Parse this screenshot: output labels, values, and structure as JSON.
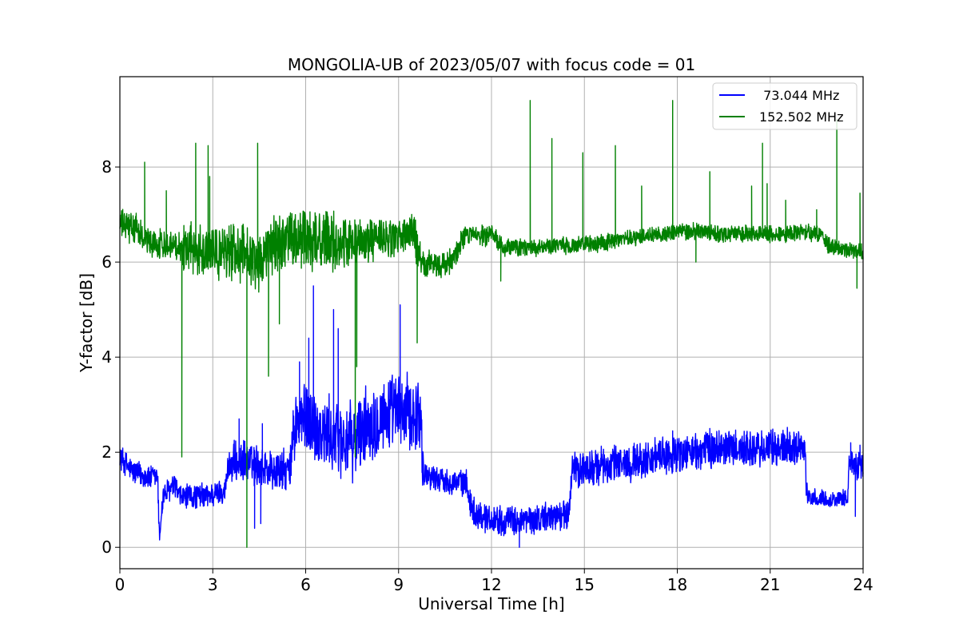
{
  "chart_data": {
    "type": "line",
    "title": "MONGOLIA-UB of 2023/05/07 with focus code = 01",
    "xlabel": "Universal Time [h]",
    "ylabel": "Y-factor [dB]",
    "xlim": [
      0,
      24
    ],
    "ylim": [
      -0.45,
      9.9
    ],
    "xticks": [
      0,
      3,
      6,
      9,
      12,
      15,
      18,
      21,
      24
    ],
    "yticks": [
      0,
      2,
      4,
      6,
      8
    ],
    "xtick_labels": [
      "0",
      "3",
      "6",
      "9",
      "12",
      "15",
      "18",
      "21",
      "24"
    ],
    "ytick_labels": [
      "0",
      "2",
      "4",
      "6",
      "8"
    ],
    "grid": true,
    "legend_position": "top-right",
    "series": [
      {
        "name": "73.044 MHz",
        "legend_label": " 73.044 MHz",
        "color": "#0000ff",
        "base": [
          [
            0,
            1.9
          ],
          [
            0.4,
            1.6
          ],
          [
            1.0,
            1.45
          ],
          [
            1.22,
            1.5
          ],
          [
            1.27,
            0.2
          ],
          [
            1.4,
            1.1
          ],
          [
            1.8,
            1.3
          ],
          [
            1.9,
            1.05
          ],
          [
            3.0,
            1.1
          ],
          [
            3.4,
            1.2
          ],
          [
            3.5,
            1.75
          ],
          [
            4.0,
            1.8
          ],
          [
            4.5,
            1.7
          ],
          [
            5.0,
            1.6
          ],
          [
            5.5,
            1.6
          ],
          [
            5.6,
            2.5
          ],
          [
            6.0,
            2.75
          ],
          [
            6.5,
            2.4
          ],
          [
            7.0,
            2.3
          ],
          [
            7.5,
            2.2
          ],
          [
            8.0,
            2.6
          ],
          [
            8.5,
            2.8
          ],
          [
            9.0,
            2.85
          ],
          [
            9.7,
            2.8
          ],
          [
            9.8,
            1.55
          ],
          [
            10.5,
            1.4
          ],
          [
            11.2,
            1.35
          ],
          [
            11.3,
            0.95
          ],
          [
            11.5,
            0.7
          ],
          [
            12.0,
            0.6
          ],
          [
            12.5,
            0.55
          ],
          [
            13.0,
            0.55
          ],
          [
            13.5,
            0.6
          ],
          [
            14.0,
            0.65
          ],
          [
            14.5,
            0.7
          ],
          [
            14.6,
            1.6
          ],
          [
            15.5,
            1.7
          ],
          [
            16.5,
            1.8
          ],
          [
            17.5,
            1.9
          ],
          [
            18.5,
            2.0
          ],
          [
            19.5,
            2.1
          ],
          [
            20.5,
            2.05
          ],
          [
            22.1,
            2.15
          ],
          [
            22.2,
            1.05
          ],
          [
            23.0,
            1.0
          ],
          [
            23.5,
            1.05
          ],
          [
            23.55,
            1.8
          ],
          [
            24.0,
            1.7
          ]
        ],
        "noise": [
          [
            0,
            0.3
          ],
          [
            3.5,
            0.5
          ],
          [
            5.6,
            0.9
          ],
          [
            9.8,
            0.3
          ],
          [
            11.3,
            0.35
          ],
          [
            14.6,
            0.45
          ],
          [
            22.2,
            0.2
          ],
          [
            23.55,
            0.35
          ],
          [
            24,
            0.35
          ]
        ],
        "spikes": [
          [
            6.25,
            5.5
          ],
          [
            6.1,
            4.4
          ],
          [
            6.9,
            5.0
          ],
          [
            7.05,
            4.6
          ],
          [
            9.05,
            5.1
          ],
          [
            5.8,
            3.9
          ],
          [
            3.85,
            2.7
          ],
          [
            4.6,
            2.6
          ],
          [
            4.35,
            0.4
          ],
          [
            4.55,
            0.5
          ],
          [
            12.9,
            0.0
          ],
          [
            17.85,
            2.45
          ],
          [
            19.05,
            2.5
          ],
          [
            23.75,
            0.65
          ],
          [
            23.6,
            2.2
          ],
          [
            23.9,
            2.15
          ]
        ]
      },
      {
        "name": "152.502 MHz",
        "legend_label": "152.502 MHz",
        "color": "#008000",
        "base": [
          [
            0,
            6.8
          ],
          [
            0.5,
            6.7
          ],
          [
            1.0,
            6.4
          ],
          [
            2.0,
            6.35
          ],
          [
            3.0,
            6.2
          ],
          [
            4.0,
            6.25
          ],
          [
            4.5,
            6.0
          ],
          [
            5.0,
            6.4
          ],
          [
            6.0,
            6.5
          ],
          [
            7.0,
            6.4
          ],
          [
            8.0,
            6.45
          ],
          [
            9.0,
            6.5
          ],
          [
            9.5,
            6.6
          ],
          [
            9.7,
            6.0
          ],
          [
            10.5,
            5.9
          ],
          [
            10.9,
            6.2
          ],
          [
            11.1,
            6.55
          ],
          [
            12.0,
            6.55
          ],
          [
            12.4,
            6.3
          ],
          [
            13.5,
            6.3
          ],
          [
            14.5,
            6.35
          ],
          [
            15.5,
            6.4
          ],
          [
            16.5,
            6.5
          ],
          [
            17.5,
            6.6
          ],
          [
            18.5,
            6.65
          ],
          [
            19.5,
            6.6
          ],
          [
            20.5,
            6.6
          ],
          [
            21.5,
            6.6
          ],
          [
            22.0,
            6.65
          ],
          [
            22.6,
            6.6
          ],
          [
            22.9,
            6.35
          ],
          [
            23.5,
            6.25
          ],
          [
            24.0,
            6.2
          ]
        ],
        "noise": [
          [
            0,
            0.35
          ],
          [
            2.0,
            0.6
          ],
          [
            3.5,
            0.7
          ],
          [
            7.5,
            0.5
          ],
          [
            9.7,
            0.3
          ],
          [
            11.1,
            0.25
          ],
          [
            12.4,
            0.2
          ],
          [
            24,
            0.25
          ]
        ],
        "spikes": [
          [
            0.8,
            8.1
          ],
          [
            1.5,
            7.5
          ],
          [
            2.0,
            1.9
          ],
          [
            2.45,
            8.5
          ],
          [
            2.85,
            8.45
          ],
          [
            2.9,
            7.8
          ],
          [
            4.1,
            0.0
          ],
          [
            4.45,
            8.5
          ],
          [
            4.8,
            3.6
          ],
          [
            5.15,
            4.7
          ],
          [
            7.6,
            1.9
          ],
          [
            7.65,
            3.8
          ],
          [
            9.6,
            4.3
          ],
          [
            12.3,
            5.6
          ],
          [
            13.25,
            9.4
          ],
          [
            13.95,
            8.6
          ],
          [
            14.95,
            8.3
          ],
          [
            16.0,
            8.45
          ],
          [
            16.85,
            7.6
          ],
          [
            17.85,
            9.4
          ],
          [
            18.6,
            6.0
          ],
          [
            19.05,
            7.9
          ],
          [
            20.4,
            7.6
          ],
          [
            20.75,
            8.5
          ],
          [
            20.9,
            7.65
          ],
          [
            21.5,
            7.3
          ],
          [
            22.5,
            7.1
          ],
          [
            23.15,
            9.0
          ],
          [
            23.8,
            5.45
          ],
          [
            23.9,
            7.45
          ]
        ]
      }
    ]
  }
}
